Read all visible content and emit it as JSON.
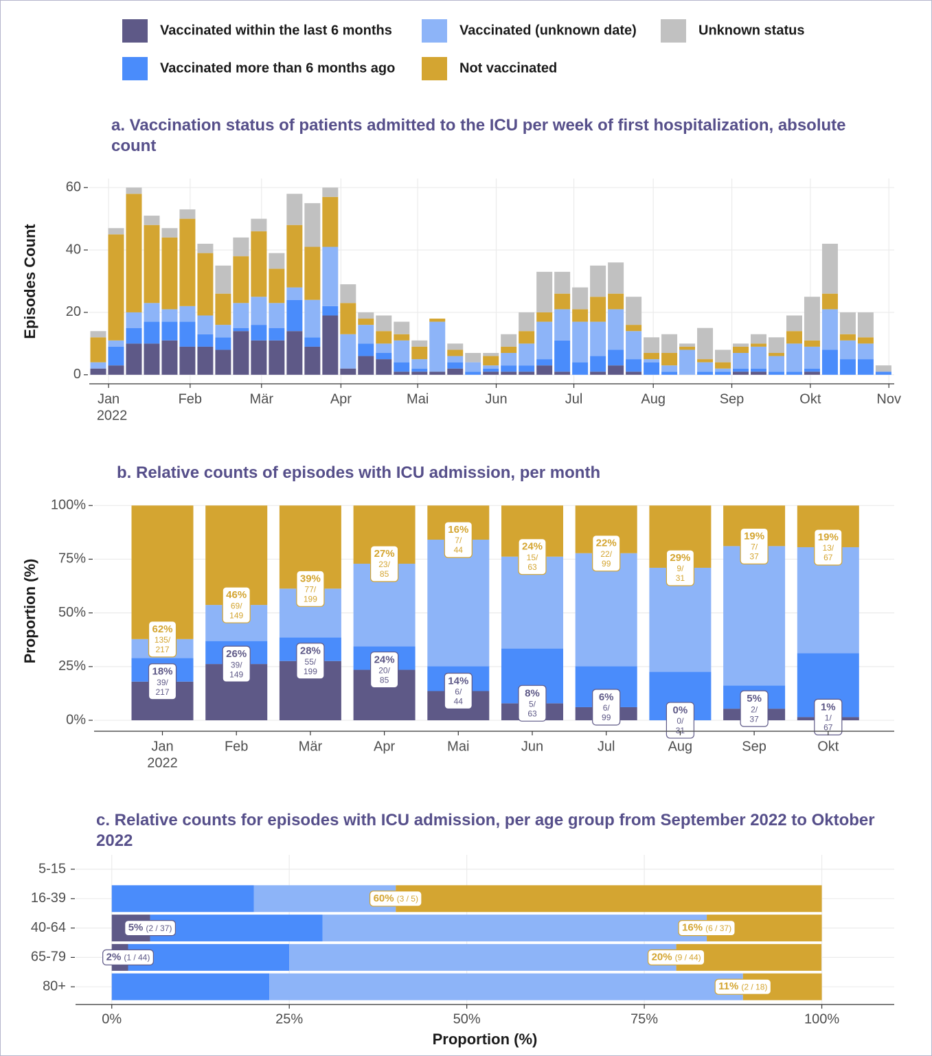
{
  "legend": "top",
  "chart_data": [
    {
      "type": "bar",
      "stacked": true,
      "title": "a. Vaccination status of patients admitted to the ICU per week of first hospitalization, absolute count",
      "ylabel": "Episodes Count",
      "categories": [
        null,
        null,
        null,
        null,
        null,
        null,
        null,
        null,
        null,
        null,
        null,
        null,
        null,
        null,
        null,
        null,
        null,
        null,
        null,
        null,
        null,
        null,
        null,
        null,
        null,
        null,
        null,
        null,
        null,
        null,
        null,
        null,
        null,
        null,
        null,
        null,
        null,
        null,
        null,
        null,
        null,
        null,
        null,
        null,
        null
      ],
      "xlim": [
        -0.5,
        44.6
      ],
      "xticks": [
        {
          "value": 0.58,
          "label": "Jan"
        },
        {
          "value": 5.15,
          "label": "Feb"
        },
        {
          "value": 9.15,
          "label": "Mär"
        },
        {
          "value": 13.6,
          "label": "Apr"
        },
        {
          "value": 17.9,
          "label": "Mai"
        },
        {
          "value": 22.3,
          "label": "Jun"
        },
        {
          "value": 26.65,
          "label": "Jul"
        },
        {
          "value": 31.1,
          "label": "Aug"
        },
        {
          "value": 35.5,
          "label": "Sep"
        },
        {
          "value": 39.9,
          "label": "Okt"
        },
        {
          "value": 44.3,
          "label": "Nov"
        }
      ],
      "year_label": "2022",
      "ylim": [
        -2.9,
        62.9
      ],
      "yticks": [
        0,
        20,
        40,
        60
      ],
      "grid": true,
      "series": [
        {
          "name": "Vaccinated within the last 6 months",
          "color": "#5e5987",
          "values": [
            2,
            3,
            10,
            10,
            11,
            9,
            9,
            8,
            14,
            11,
            11,
            14,
            9,
            19,
            2,
            6,
            5,
            1,
            1,
            1,
            2,
            0,
            1,
            1,
            1,
            3,
            1,
            0,
            1,
            3,
            1,
            0,
            0,
            0,
            0,
            0,
            1,
            1,
            0,
            0,
            1,
            0,
            0,
            0,
            0
          ]
        },
        {
          "name": "Vaccinated more than 6 months ago",
          "color": "#4a8cfb",
          "values": [
            0,
            6,
            5,
            7,
            6,
            8,
            4,
            4,
            1,
            5,
            4,
            10,
            3,
            3,
            0,
            4,
            2,
            3,
            1,
            0,
            2,
            1,
            1,
            2,
            2,
            2,
            10,
            4,
            5,
            5,
            4,
            4,
            1,
            0,
            1,
            1,
            1,
            1,
            1,
            1,
            1,
            8,
            5,
            5,
            1
          ]
        },
        {
          "name": "Vaccinated (unknown date)",
          "color": "#8db4f8",
          "values": [
            2,
            2,
            5,
            6,
            4,
            5,
            6,
            4,
            8,
            9,
            8,
            4,
            12,
            19,
            11,
            6,
            3,
            7,
            3,
            16,
            2,
            3,
            1,
            4,
            7,
            12,
            10,
            13,
            11,
            13,
            9,
            1,
            2,
            8,
            3,
            1,
            5,
            7,
            5,
            9,
            7,
            13,
            6,
            5,
            0
          ]
        },
        {
          "name": "Not vaccinated",
          "color": "#d4a531",
          "values": [
            8,
            34,
            38,
            25,
            23,
            28,
            20,
            10,
            15,
            21,
            11,
            20,
            17,
            16,
            10,
            2,
            4,
            2,
            4,
            1,
            2,
            0,
            3,
            2,
            4,
            3,
            5,
            4,
            8,
            5,
            2,
            2,
            4,
            1,
            1,
            2,
            2,
            1,
            1,
            4,
            2,
            5,
            2,
            2,
            0
          ]
        },
        {
          "name": "Unknown status",
          "color": "#c1c1c1",
          "values": [
            2,
            2,
            2,
            3,
            3,
            3,
            3,
            9,
            6,
            4,
            5,
            10,
            14,
            3,
            6,
            2,
            5,
            4,
            2,
            0,
            2,
            3,
            1,
            4,
            6,
            13,
            7,
            7,
            10,
            10,
            9,
            5,
            6,
            1,
            10,
            4,
            1,
            3,
            5,
            5,
            14,
            16,
            7,
            8,
            2
          ]
        }
      ]
    },
    {
      "type": "bar",
      "stacked": true,
      "title": "b. Relative counts of episodes with ICU admission, per month",
      "ylabel": "Proportion (%)",
      "categories": [
        "Jan",
        "Feb",
        "Mär",
        "Apr",
        "Mai",
        "Jun",
        "Jul",
        "Aug",
        "Sep",
        "Okt"
      ],
      "year_label": "2022",
      "ylim": [
        -5.1,
        102
      ],
      "yticks": [
        {
          "value": 0,
          "label": "0%"
        },
        {
          "value": 25,
          "label": "25%"
        },
        {
          "value": 50,
          "label": "50%"
        },
        {
          "value": 75,
          "label": "75%"
        },
        {
          "value": 100,
          "label": "100%"
        }
      ],
      "grid": true,
      "series": [
        {
          "color": "#5e5987",
          "values": [
            18.0,
            26.2,
            27.6,
            23.5,
            13.6,
            7.9,
            6.1,
            0,
            5.4,
            1.49
          ],
          "value_labels": [
            "18%",
            "26%",
            "28%",
            "24%",
            "14%",
            "8%",
            "6%",
            "0%",
            "5%",
            "1%"
          ],
          "count_labels": [
            "39/",
            "39/",
            "55/",
            "20/",
            "6/",
            "5/",
            "6/",
            "0/",
            "2/",
            "1/"
          ],
          "total_labels": [
            "217",
            "149",
            "199",
            "85",
            "44",
            "63",
            "99",
            "31",
            "37",
            "67"
          ]
        },
        {
          "color": "#4a8cfb",
          "values": [
            11.0,
            10.7,
            11.0,
            10.9,
            11.6,
            25.5,
            19.1,
            22.6,
            10.8,
            29.7
          ]
        },
        {
          "color": "#8db4f8",
          "values": [
            8.8,
            16.8,
            22.7,
            38.5,
            58.9,
            42.8,
            52.6,
            48.4,
            64.9,
            49.4
          ]
        },
        {
          "color": "#d4a531",
          "values": [
            62.2,
            46.3,
            38.7,
            27.1,
            15.9,
            23.8,
            22.2,
            29,
            18.9,
            19.4
          ],
          "value_labels": [
            "62%",
            "46%",
            "39%",
            "27%",
            "16%",
            "24%",
            "22%",
            "29%",
            "19%",
            "19%"
          ],
          "count_labels": [
            "135/",
            "69/",
            "77/",
            "23/",
            "7/",
            "15/",
            "22/",
            "9/",
            "7/",
            "13/"
          ],
          "total_labels": [
            "217",
            "149",
            "199",
            "85",
            "44",
            "63",
            "99",
            "31",
            "37",
            "67"
          ]
        }
      ]
    },
    {
      "type": "barh",
      "stacked": true,
      "title": "c. Relative counts for episodes with ICU admission, per age group from September 2022 to Oktober 2022",
      "xlabel": "Proportion (%)",
      "categories": [
        "5-15",
        "16-39",
        "40-64",
        "65-79",
        "80+"
      ],
      "xlim": [
        -5.1,
        110.2
      ],
      "xticks": [
        {
          "value": 0,
          "label": "0%"
        },
        {
          "value": 25,
          "label": "25%"
        },
        {
          "value": 50,
          "label": "50%"
        },
        {
          "value": 75,
          "label": "75%"
        },
        {
          "value": 100,
          "label": "100%"
        }
      ],
      "grid": true,
      "series": [
        {
          "color": "#5e5987",
          "values": [
            null,
            0,
            5.4,
            2.3,
            0
          ],
          "value_labels": [
            null,
            null,
            "5%",
            "2%",
            null
          ],
          "fraction_labels": [
            null,
            null,
            "(2 / 37)",
            "(1 / 44)",
            null
          ]
        },
        {
          "color": "#4a8cfb",
          "values": [
            null,
            20,
            24.3,
            22.7,
            22.2
          ]
        },
        {
          "color": "#8db4f8",
          "values": [
            null,
            20,
            54.1,
            54.5,
            66.7
          ]
        },
        {
          "color": "#d4a531",
          "values": [
            null,
            60,
            16.2,
            20.45,
            11.1
          ],
          "value_labels": [
            null,
            "60%",
            "16%",
            "20%",
            "11%"
          ],
          "fraction_labels": [
            null,
            "(3 / 5)",
            "(6 / 37)",
            "(9 / 44)",
            "(2 / 18)"
          ]
        }
      ]
    }
  ]
}
